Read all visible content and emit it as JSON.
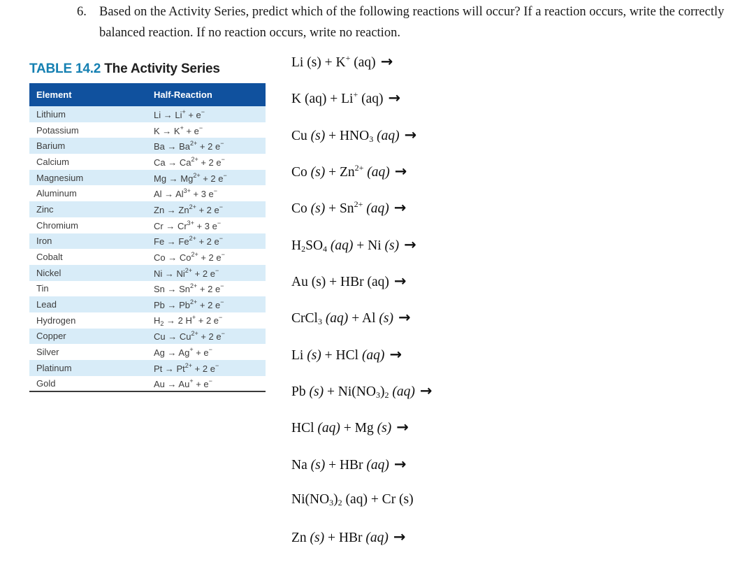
{
  "question": {
    "number": "6.",
    "text": "Based on the Activity Series, predict which of the following reactions will occur?  If a reaction occurs, write the correctly balanced reaction.  If no reaction occurs, write no reaction."
  },
  "table": {
    "title_label": "TABLE 14.2",
    "title_text": "The Activity Series",
    "columns": [
      "Element",
      "Half-Reaction"
    ],
    "rows": [
      {
        "element": "Lithium",
        "half_reaction": "Li → Li^+^ + e^−^"
      },
      {
        "element": "Potassium",
        "half_reaction": "K → K^+^ + e^−^"
      },
      {
        "element": "Barium",
        "half_reaction": "Ba → Ba^2+^ + 2 e^−^"
      },
      {
        "element": "Calcium",
        "half_reaction": "Ca → Ca^2+^ + 2 e^−^"
      },
      {
        "element": "Magnesium",
        "half_reaction": "Mg → Mg^2+^ + 2 e^−^"
      },
      {
        "element": "Aluminum",
        "half_reaction": "Al → Al^3+^ + 3 e^−^"
      },
      {
        "element": "Zinc",
        "half_reaction": "Zn → Zn^2+^ + 2 e^−^"
      },
      {
        "element": "Chromium",
        "half_reaction": "Cr → Cr^3+^ + 3 e^−^"
      },
      {
        "element": "Iron",
        "half_reaction": "Fe → Fe^2+^ + 2 e^−^"
      },
      {
        "element": "Cobalt",
        "half_reaction": "Co → Co^2+^ + 2 e^−^"
      },
      {
        "element": "Nickel",
        "half_reaction": "Ni → Ni^2+^ + 2 e^−^"
      },
      {
        "element": "Tin",
        "half_reaction": "Sn → Sn^2+^ + 2 e^−^"
      },
      {
        "element": "Lead",
        "half_reaction": "Pb → Pb^2+^ + 2 e^−^"
      },
      {
        "element": "Hydrogen",
        "half_reaction": "H~2~ → 2 H^+^ + 2 e^−^"
      },
      {
        "element": "Copper",
        "half_reaction": "Cu → Cu^2+^ + 2 e^−^"
      },
      {
        "element": "Silver",
        "half_reaction": "Ag → Ag^+^ + e^−^"
      },
      {
        "element": "Platinum",
        "half_reaction": "Pt → Pt^2+^ + 2 e^−^"
      },
      {
        "element": "Gold",
        "half_reaction": "Au → Au^+^ + e^−^"
      }
    ],
    "colors": {
      "header_bg": "#10519E",
      "header_text": "#FFFFFF",
      "row_alt_bg": "#D8ECF8",
      "title_accent": "#1580B2",
      "bottom_rule": "#3A3A3A"
    }
  },
  "reactions": {
    "arrow_char": "→",
    "items": [
      {
        "formula": "Li (s) + K^+^ (aq)",
        "arrow": true
      },
      {
        "formula": "K (aq) + Li^+^ (aq)",
        "arrow": true
      },
      {
        "formula": "Cu *(s)* + HNO~3~ *(aq)*",
        "arrow": true
      },
      {
        "formula": "Co *(s)* + Zn^2+^ *(aq)*",
        "arrow": true
      },
      {
        "formula": "Co *(s)* + Sn^2+^ *(aq)*",
        "arrow": true
      },
      {
        "formula": "H~2~SO~4~ *(aq)* + Ni *(s)*",
        "arrow": true
      },
      {
        "formula": "Au (s) + HBr (aq)",
        "arrow": true
      },
      {
        "formula": "CrCl~3~ *(aq)* + Al *(s)*",
        "arrow": true
      },
      {
        "formula": "Li *(s)* + HCl *(aq)*",
        "arrow": true
      },
      {
        "formula": "Pb *(s)* + Ni(NO~3~)~2~ *(aq)*",
        "arrow": true
      },
      {
        "formula": "HCl *(aq)* + Mg *(s)*",
        "arrow": true
      },
      {
        "formula": "Na *(s)* + HBr *(aq)*",
        "arrow": true
      },
      {
        "formula": "Ni(NO~3~)~2~ (aq) + Cr (s)",
        "arrow": false
      },
      {
        "formula": "Zn *(s)* + HBr *(aq)*",
        "arrow": true
      }
    ]
  }
}
